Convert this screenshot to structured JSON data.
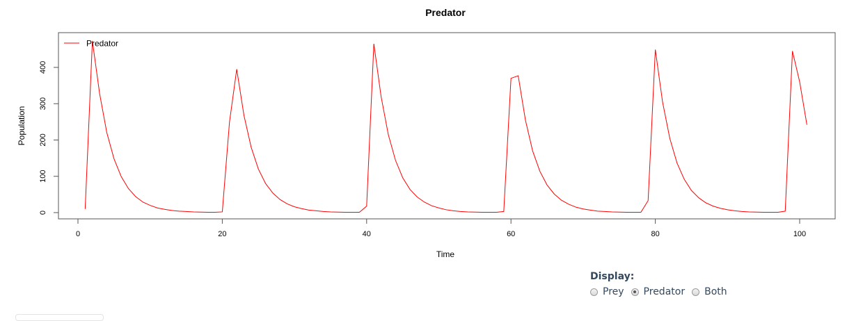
{
  "chart_data": {
    "type": "line",
    "title": "Predator",
    "xlabel": "Time",
    "ylabel": "Population",
    "xlim": [
      0,
      100
    ],
    "ylim": [
      0,
      400
    ],
    "xticks": [
      "0",
      "20",
      "40",
      "60",
      "80",
      "100"
    ],
    "yticks": [
      "0",
      "100",
      "200",
      "300",
      "400"
    ],
    "legend": {
      "position": "top-left",
      "entries": [
        "Predator"
      ]
    },
    "series": [
      {
        "name": "Predator",
        "color": "#ff0000",
        "x": [
          1,
          2,
          3,
          4,
          5,
          6,
          7,
          8,
          9,
          10,
          11,
          12,
          13,
          14,
          15,
          16,
          17,
          18,
          19,
          20,
          21,
          22,
          23,
          24,
          25,
          26,
          27,
          28,
          29,
          30,
          31,
          32,
          33,
          34,
          35,
          36,
          37,
          38,
          39,
          40,
          41,
          42,
          43,
          44,
          45,
          46,
          47,
          48,
          49,
          50,
          51,
          52,
          53,
          54,
          55,
          56,
          57,
          58,
          59,
          60,
          61,
          62,
          63,
          64,
          65,
          66,
          67,
          68,
          69,
          70,
          71,
          72,
          73,
          74,
          75,
          76,
          77,
          78,
          79,
          80,
          81,
          82,
          83,
          84,
          85,
          86,
          87,
          88,
          89,
          90,
          91,
          92,
          93,
          94,
          95,
          96,
          97,
          98,
          99,
          100,
          101
        ],
        "y": [
          10,
          473,
          328,
          220,
          148,
          99,
          66,
          44,
          29,
          20,
          13,
          9,
          6,
          4,
          3,
          2,
          1.5,
          1,
          1,
          2,
          250,
          395,
          268,
          180,
          120,
          80,
          54,
          36,
          24,
          16,
          11,
          7,
          5,
          3,
          2,
          1.5,
          1,
          1,
          1,
          18,
          465,
          320,
          215,
          144,
          96,
          64,
          43,
          29,
          19,
          13,
          8,
          5,
          3,
          2,
          1.5,
          1,
          1,
          1,
          3,
          370,
          377,
          255,
          170,
          114,
          76,
          51,
          34,
          23,
          15,
          10,
          7,
          4,
          3,
          2,
          1.5,
          1,
          1,
          1,
          33,
          449,
          305,
          205,
          137,
          92,
          61,
          41,
          27,
          18,
          12,
          8,
          5,
          3,
          2,
          1.5,
          1,
          1,
          1,
          4,
          445,
          360,
          242
        ]
      }
    ]
  },
  "controls": {
    "display_label": "Display:",
    "options": [
      "Prey",
      "Predator",
      "Both"
    ],
    "selected": "Predator"
  }
}
